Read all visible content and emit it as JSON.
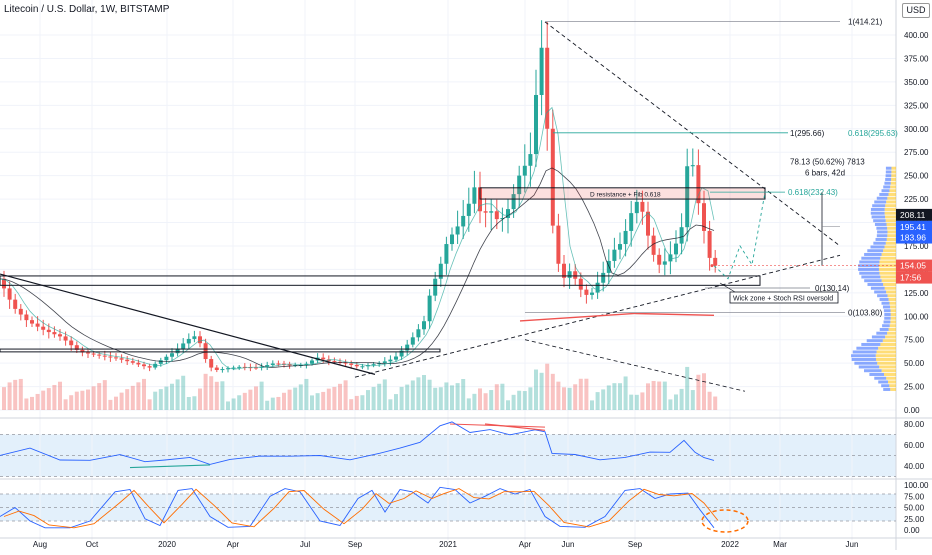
{
  "title": "Litecoin / U.S. Dollar, 1W, BITSTAMP",
  "currency_button": "USD",
  "price_axis": {
    "ticks": [
      "0.00",
      "25.00",
      "50.00",
      "75.00",
      "100.00",
      "125.00",
      "150.00",
      "175.00",
      "200.00",
      "225.00",
      "250.00",
      "275.00",
      "300.00",
      "325.00",
      "350.00",
      "375.00",
      "400.00"
    ],
    "badges": [
      {
        "text": "208.11",
        "color": "#131722"
      },
      {
        "text": "195.41",
        "color": "#2962ff"
      },
      {
        "text": "183.96",
        "color": "#2962ff"
      },
      {
        "text": "154.05",
        "color": "#ef5350"
      },
      {
        "text": "17:56",
        "color": "#ef5350"
      }
    ]
  },
  "time_axis": [
    "Aug",
    "Oct",
    "2020",
    "Apr",
    "Jul",
    "Sep",
    "2021",
    "Apr",
    "Jun",
    "Sep",
    "2022",
    "Mar",
    "Jun"
  ],
  "annotations": {
    "fib_top": "1(414.21)",
    "fib_1": "1(295.66)",
    "fib_0618_a": "0.618(295.63)",
    "fib_0618_b": "0.618(232.43)",
    "fib_0_a": "0(130.14)",
    "fib_0_b": "0(103.80)",
    "resistance": "D resistance + Fib 0.618",
    "measure_1": "78.13 (50.62%) 7813",
    "measure_2": "6 bars, 42d",
    "callout": "Wick zone + Stoch RSI oversold"
  },
  "rsi_axis": [
    "80.00",
    "60.00",
    "40.00"
  ],
  "stoch_axis": [
    "100.00",
    "75.00",
    "50.00",
    "25.00",
    "0.00"
  ],
  "colors": {
    "up": "#26a69a",
    "down": "#ef5350",
    "fib": "#26a69a",
    "rsi": "#2962ff",
    "stochK": "#2962ff",
    "stochD": "#ff6d00",
    "band": "#e3f0fb"
  },
  "chart_data": {
    "type": "candlestick",
    "title": "Litecoin / U.S. Dollar, 1W, BITSTAMP",
    "ylim": [
      0,
      420
    ],
    "approx_weekly_close": [
      [
        2019.55,
        95
      ],
      [
        2019.6,
        88
      ],
      [
        2019.7,
        70
      ],
      [
        2019.8,
        58
      ],
      [
        2019.9,
        48
      ],
      [
        2020.0,
        42
      ],
      [
        2020.1,
        68
      ],
      [
        2020.15,
        78
      ],
      [
        2020.2,
        40
      ],
      [
        2020.3,
        44
      ],
      [
        2020.4,
        45
      ],
      [
        2020.5,
        43
      ],
      [
        2020.6,
        56
      ],
      [
        2020.7,
        48
      ],
      [
        2020.8,
        46
      ],
      [
        2020.9,
        70
      ],
      [
        2021.0,
        150
      ],
      [
        2021.1,
        210
      ],
      [
        2021.2,
        235
      ],
      [
        2021.3,
        390
      ],
      [
        2021.35,
        250
      ],
      [
        2021.4,
        190
      ],
      [
        2021.5,
        140
      ],
      [
        2021.6,
        170
      ],
      [
        2021.7,
        190
      ],
      [
        2021.75,
        235
      ],
      [
        2021.8,
        200
      ],
      [
        2021.85,
        290
      ],
      [
        2021.9,
        195
      ],
      [
        2021.95,
        154.05
      ]
    ],
    "last_price": 154.05
  }
}
